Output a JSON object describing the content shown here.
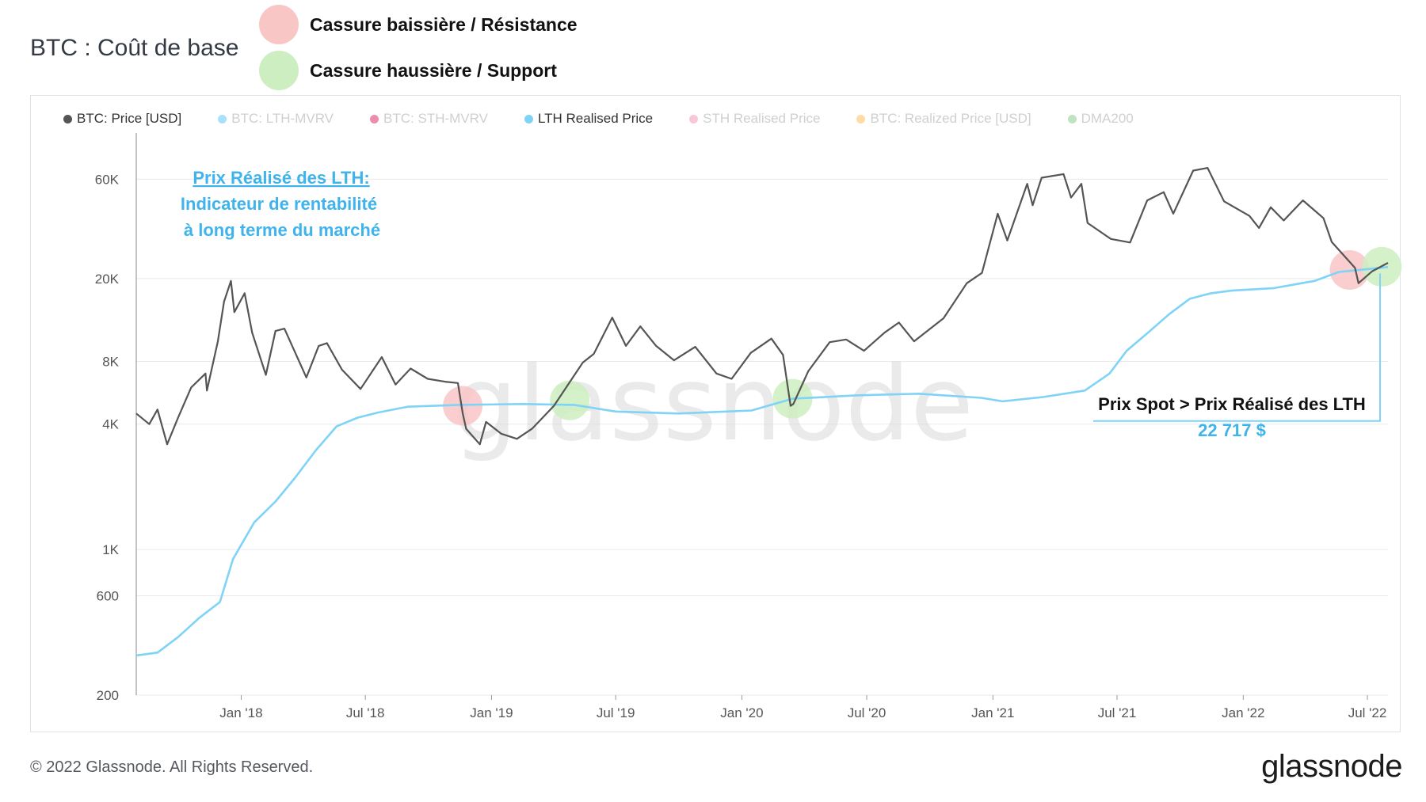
{
  "page": {
    "title": "BTC : Coût de base",
    "copyright": "© 2022 Glassnode. All Rights Reserved.",
    "logo": "glassnode",
    "watermark": "glassnode"
  },
  "top_legend": [
    {
      "label": "Cassure baissière / Résistance",
      "color": "#f9c6c6"
    },
    {
      "label": "Cassure haussière / Support",
      "color": "#cdeec0"
    }
  ],
  "legend": [
    {
      "label": "BTC: Price [USD]",
      "color": "#555555",
      "active": true
    },
    {
      "label": "BTC: LTH-MVRV",
      "color": "#4fc3f7",
      "active": false
    },
    {
      "label": "BTC: STH-MVRV",
      "color": "#d81b60",
      "active": false
    },
    {
      "label": "LTH Realised Price",
      "color": "#7fd3f7",
      "active": true
    },
    {
      "label": "STH Realised Price",
      "color": "#f48fb1",
      "active": false
    },
    {
      "label": "BTC: Realized Price [USD]",
      "color": "#ffb74d",
      "active": false
    },
    {
      "label": "DMA200",
      "color": "#81c784",
      "active": false
    }
  ],
  "annotations": {
    "lth_title": "Prix Réalisé des LTH:",
    "lth_line2": "Indicateur de rentabilité",
    "lth_line3": "à long terme du marché",
    "spot_text": "Prix Spot > Prix Réalisé des LTH",
    "spot_value": "22 717 $"
  },
  "chart_data": {
    "type": "line",
    "y_scale": "log",
    "ylim": [
      200,
      100000
    ],
    "y_ticks": [
      {
        "value": 200,
        "label": "200"
      },
      {
        "value": 600,
        "label": "600"
      },
      {
        "value": 1000,
        "label": "1K"
      },
      {
        "value": 4000,
        "label": "4K"
      },
      {
        "value": 8000,
        "label": "8K"
      },
      {
        "value": 20000,
        "label": "20K"
      },
      {
        "value": 60000,
        "label": "60K"
      }
    ],
    "x_range": [
      "2017-08-01",
      "2022-07-31"
    ],
    "x_ticks": [
      {
        "date": "2018-01-01",
        "label": "Jan '18"
      },
      {
        "date": "2018-07-01",
        "label": "Jul '18"
      },
      {
        "date": "2019-01-01",
        "label": "Jan '19"
      },
      {
        "date": "2019-07-01",
        "label": "Jul '19"
      },
      {
        "date": "2020-01-01",
        "label": "Jan '20"
      },
      {
        "date": "2020-07-01",
        "label": "Jul '20"
      },
      {
        "date": "2021-01-01",
        "label": "Jan '21"
      },
      {
        "date": "2021-07-01",
        "label": "Jul '21"
      },
      {
        "date": "2022-01-01",
        "label": "Jan '22"
      },
      {
        "date": "2022-07-01",
        "label": "Jul '22"
      }
    ],
    "grid": true,
    "series": [
      {
        "name": "BTC: Price [USD]",
        "color": "#555555",
        "points": [
          [
            "2017-08-01",
            4500
          ],
          [
            "2017-08-20",
            4000
          ],
          [
            "2017-09-01",
            4700
          ],
          [
            "2017-09-15",
            3200
          ],
          [
            "2017-10-01",
            4300
          ],
          [
            "2017-10-20",
            6000
          ],
          [
            "2017-11-10",
            7000
          ],
          [
            "2017-11-12",
            5800
          ],
          [
            "2017-11-28",
            10000
          ],
          [
            "2017-12-07",
            15500
          ],
          [
            "2017-12-17",
            19500
          ],
          [
            "2017-12-22",
            13800
          ],
          [
            "2018-01-06",
            17000
          ],
          [
            "2018-01-17",
            11000
          ],
          [
            "2018-02-06",
            6900
          ],
          [
            "2018-02-20",
            11200
          ],
          [
            "2018-03-05",
            11500
          ],
          [
            "2018-04-06",
            6700
          ],
          [
            "2018-04-24",
            9500
          ],
          [
            "2018-05-06",
            9800
          ],
          [
            "2018-05-28",
            7300
          ],
          [
            "2018-06-24",
            5900
          ],
          [
            "2018-07-25",
            8400
          ],
          [
            "2018-08-14",
            6200
          ],
          [
            "2018-09-05",
            7400
          ],
          [
            "2018-09-30",
            6600
          ],
          [
            "2018-10-25",
            6400
          ],
          [
            "2018-11-13",
            6300
          ],
          [
            "2018-11-20",
            4500
          ],
          [
            "2018-11-25",
            3800
          ],
          [
            "2018-12-15",
            3200
          ],
          [
            "2018-12-24",
            4100
          ],
          [
            "2019-01-15",
            3600
          ],
          [
            "2019-02-07",
            3400
          ],
          [
            "2019-03-01",
            3800
          ],
          [
            "2019-04-02",
            4900
          ],
          [
            "2019-05-14",
            7900
          ],
          [
            "2019-05-30",
            8700
          ],
          [
            "2019-06-26",
            13000
          ],
          [
            "2019-07-16",
            9500
          ],
          [
            "2019-08-06",
            11800
          ],
          [
            "2019-08-29",
            9500
          ],
          [
            "2019-09-24",
            8100
          ],
          [
            "2019-10-25",
            9400
          ],
          [
            "2019-11-25",
            7000
          ],
          [
            "2019-12-17",
            6600
          ],
          [
            "2020-01-14",
            8800
          ],
          [
            "2020-02-13",
            10300
          ],
          [
            "2020-03-01",
            8600
          ],
          [
            "2020-03-12",
            4900
          ],
          [
            "2020-03-16",
            5000
          ],
          [
            "2020-04-07",
            7200
          ],
          [
            "2020-05-08",
            9900
          ],
          [
            "2020-06-01",
            10200
          ],
          [
            "2020-06-27",
            9000
          ],
          [
            "2020-07-27",
            11000
          ],
          [
            "2020-08-17",
            12300
          ],
          [
            "2020-09-08",
            10000
          ],
          [
            "2020-10-21",
            12900
          ],
          [
            "2020-11-24",
            19000
          ],
          [
            "2020-12-16",
            21300
          ],
          [
            "2021-01-08",
            41000
          ],
          [
            "2021-01-22",
            30500
          ],
          [
            "2021-02-20",
            57000
          ],
          [
            "2021-02-28",
            45000
          ],
          [
            "2021-03-13",
            61000
          ],
          [
            "2021-04-14",
            63500
          ],
          [
            "2021-04-25",
            49000
          ],
          [
            "2021-05-10",
            57000
          ],
          [
            "2021-05-19",
            37000
          ],
          [
            "2021-06-22",
            31000
          ],
          [
            "2021-07-20",
            29800
          ],
          [
            "2021-08-14",
            47500
          ],
          [
            "2021-09-07",
            52000
          ],
          [
            "2021-09-21",
            41000
          ],
          [
            "2021-10-20",
            66000
          ],
          [
            "2021-11-10",
            68000
          ],
          [
            "2021-12-04",
            47000
          ],
          [
            "2022-01-10",
            40000
          ],
          [
            "2022-01-24",
            35000
          ],
          [
            "2022-02-10",
            44000
          ],
          [
            "2022-03-01",
            38000
          ],
          [
            "2022-03-29",
            47500
          ],
          [
            "2022-04-28",
            39000
          ],
          [
            "2022-05-10",
            30000
          ],
          [
            "2022-06-13",
            22500
          ],
          [
            "2022-06-18",
            19000
          ],
          [
            "2022-07-08",
            21700
          ],
          [
            "2022-07-31",
            23800
          ]
        ]
      },
      {
        "name": "LTH Realised Price",
        "color": "#7fd3f7",
        "points": [
          [
            "2017-08-01",
            310
          ],
          [
            "2017-09-01",
            320
          ],
          [
            "2017-10-01",
            380
          ],
          [
            "2017-11-01",
            470
          ],
          [
            "2017-12-01",
            560
          ],
          [
            "2017-12-20",
            900
          ],
          [
            "2018-01-20",
            1350
          ],
          [
            "2018-02-20",
            1700
          ],
          [
            "2018-03-20",
            2200
          ],
          [
            "2018-04-20",
            3000
          ],
          [
            "2018-05-20",
            3900
          ],
          [
            "2018-06-20",
            4300
          ],
          [
            "2018-07-20",
            4550
          ],
          [
            "2018-09-01",
            4850
          ],
          [
            "2018-11-15",
            4950
          ],
          [
            "2019-02-15",
            5000
          ],
          [
            "2019-05-01",
            4950
          ],
          [
            "2019-07-01",
            4600
          ],
          [
            "2019-10-01",
            4500
          ],
          [
            "2020-01-15",
            4650
          ],
          [
            "2020-03-15",
            5300
          ],
          [
            "2020-06-15",
            5500
          ],
          [
            "2020-09-15",
            5600
          ],
          [
            "2020-12-15",
            5350
          ],
          [
            "2021-01-15",
            5150
          ],
          [
            "2021-03-15",
            5400
          ],
          [
            "2021-05-15",
            5800
          ],
          [
            "2021-06-20",
            7000
          ],
          [
            "2021-07-15",
            9000
          ],
          [
            "2021-08-15",
            11000
          ],
          [
            "2021-09-15",
            13500
          ],
          [
            "2021-10-15",
            16000
          ],
          [
            "2021-11-15",
            17000
          ],
          [
            "2021-12-15",
            17500
          ],
          [
            "2022-02-15",
            18000
          ],
          [
            "2022-04-15",
            19500
          ],
          [
            "2022-05-20",
            21500
          ],
          [
            "2022-07-31",
            22717
          ]
        ]
      }
    ],
    "highlights": [
      {
        "date": "2018-11-20",
        "value": 4900,
        "kind": "resistance"
      },
      {
        "date": "2019-04-25",
        "value": 5200,
        "kind": "support"
      },
      {
        "date": "2020-03-15",
        "value": 5300,
        "kind": "support"
      },
      {
        "date": "2022-06-05",
        "value": 22000,
        "kind": "resistance"
      },
      {
        "date": "2022-07-22",
        "value": 22800,
        "kind": "support"
      }
    ]
  }
}
